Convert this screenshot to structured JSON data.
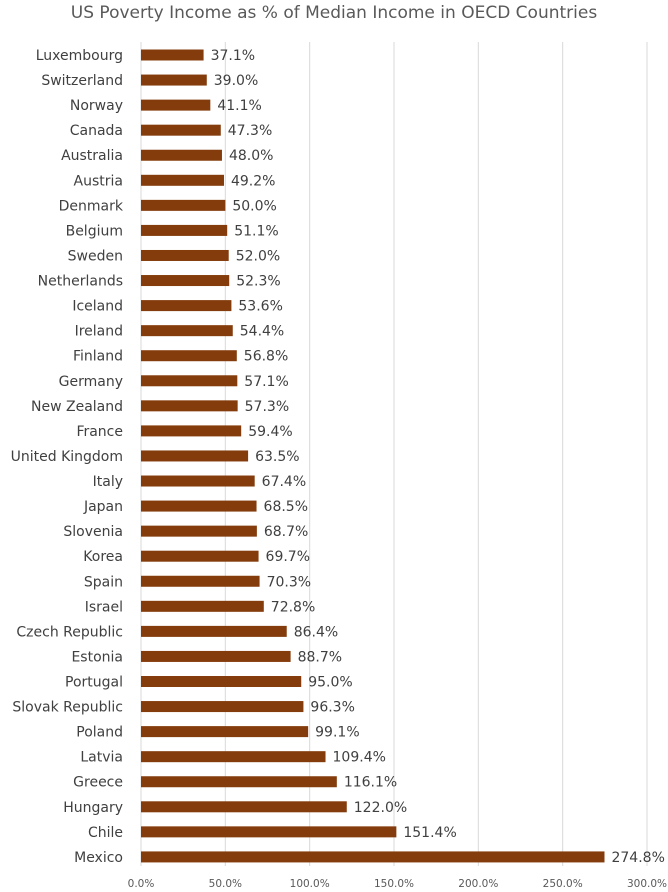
{
  "chart_data": {
    "type": "bar",
    "orientation": "horizontal",
    "title": "US Poverty Income as % of Median Income in OECD Countries",
    "xlabel": "",
    "ylabel": "",
    "xlim": [
      0,
      300
    ],
    "value_format": "percent",
    "grid": true,
    "legend": "none",
    "bar_color": "#843C0C",
    "ticks": [
      "0.0%",
      "50.0%",
      "100.0%",
      "150.0%",
      "200.0%",
      "250.0%",
      "300.0%"
    ],
    "categories": [
      "Luxembourg",
      "Switzerland",
      "Norway",
      "Canada",
      "Australia",
      "Austria",
      "Denmark",
      "Belgium",
      "Sweden",
      "Netherlands",
      "Iceland",
      "Ireland",
      "Finland",
      "Germany",
      "New Zealand",
      "France",
      "United Kingdom",
      "Italy",
      "Japan",
      "Slovenia",
      "Korea",
      "Spain",
      "Israel",
      "Czech Republic",
      "Estonia",
      "Portugal",
      "Slovak Republic",
      "Poland",
      "Latvia",
      "Greece",
      "Hungary",
      "Chile",
      "Mexico"
    ],
    "values": [
      37.1,
      39.0,
      41.1,
      47.3,
      48.0,
      49.2,
      50.0,
      51.1,
      52.0,
      52.3,
      53.6,
      54.4,
      56.8,
      57.1,
      57.3,
      59.4,
      63.5,
      67.4,
      68.5,
      68.7,
      69.7,
      70.3,
      72.8,
      86.4,
      88.7,
      95.0,
      96.3,
      99.1,
      109.4,
      116.1,
      122.0,
      151.4,
      274.8
    ],
    "labels": [
      "37.1%",
      "39.0%",
      "41.1%",
      "47.3%",
      "48.0%",
      "49.2%",
      "50.0%",
      "51.1%",
      "52.0%",
      "52.3%",
      "53.6%",
      "54.4%",
      "56.8%",
      "57.1%",
      "57.3%",
      "59.4%",
      "63.5%",
      "67.4%",
      "68.5%",
      "68.7%",
      "69.7%",
      "70.3%",
      "72.8%",
      "86.4%",
      "88.7%",
      "95.0%",
      "96.3%",
      "99.1%",
      "109.4%",
      "116.1%",
      "122.0%",
      "151.4%",
      "274.8%"
    ]
  }
}
